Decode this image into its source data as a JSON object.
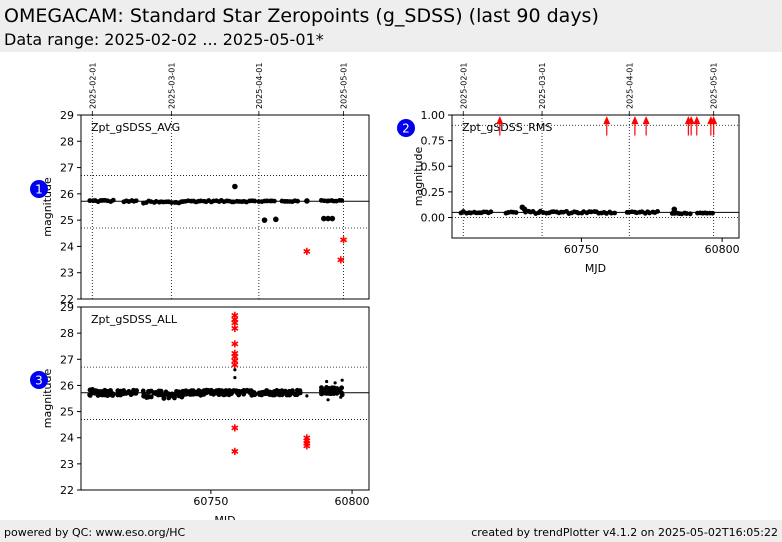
{
  "header": {
    "title": "OMEGACAM: Standard Star Zeropoints (g_SDSS) (last 90 days)",
    "subtitle": "Data range: 2025-02-02 ... 2025-05-01*"
  },
  "footer": {
    "left": "powered by QC: www.eso.org/HC",
    "right": "created by trendPlotter v4.1.2 on 2025-05-02T16:05:22"
  },
  "colors": {
    "data": "#000000",
    "outlier": "#ff0000",
    "badge": "#0000ee",
    "header_bg": "#eeeeee"
  },
  "chart_data": [
    {
      "type": "scatter",
      "badge": "1",
      "label": "Zpt_gSDSS_AVG",
      "ylabel": "magnitude",
      "ylim": [
        22,
        29
      ],
      "yticks": [
        22,
        23,
        24,
        25,
        26,
        27,
        28,
        29
      ],
      "xlim": [
        60704,
        60806
      ],
      "date_ticks": [
        {
          "mjd": 60708,
          "label": "2025-02-01"
        },
        {
          "mjd": 60736,
          "label": "2025-03-01"
        },
        {
          "mjd": 60767,
          "label": "2025-04-01"
        },
        {
          "mjd": 60797,
          "label": "2025-05-01"
        }
      ],
      "ref_lines": {
        "median": 25.72,
        "upper": 26.7,
        "lower": 24.7
      },
      "segments": [
        {
          "x0": 60707,
          "x1": 60716,
          "y": 25.73,
          "spread": 0.04
        },
        {
          "x0": 60719,
          "x1": 60724,
          "y": 25.72,
          "spread": 0.03
        },
        {
          "x0": 60726,
          "x1": 60740,
          "y": 25.68,
          "spread": 0.05
        },
        {
          "x0": 60740,
          "x1": 60766,
          "y": 25.72,
          "spread": 0.03
        },
        {
          "x0": 60767,
          "x1": 60773,
          "y": 25.72,
          "spread": 0.03
        },
        {
          "x0": 60775,
          "x1": 60781,
          "y": 25.72,
          "spread": 0.02
        },
        {
          "x0": 60789,
          "x1": 60797,
          "y": 25.74,
          "spread": 0.02
        }
      ],
      "points": [
        {
          "x": 60758.5,
          "y": 26.28
        },
        {
          "x": 60769,
          "y": 25.0
        },
        {
          "x": 60773,
          "y": 25.03
        },
        {
          "x": 60784,
          "y": 25.73
        },
        {
          "x": 60790,
          "y": 25.06
        },
        {
          "x": 60791.5,
          "y": 25.06
        },
        {
          "x": 60793,
          "y": 25.06
        }
      ],
      "outliers": [
        {
          "x": 60784,
          "y": 23.83
        },
        {
          "x": 60796,
          "y": 23.5
        },
        {
          "x": 60797,
          "y": 24.27
        }
      ]
    },
    {
      "type": "scatter",
      "badge": "2",
      "label": "Zpt_gSDSS_RMS",
      "ylabel": "magnitude",
      "xlabel": "MJD",
      "ylim": [
        -0.2,
        1.0
      ],
      "yticks": [
        0.0,
        0.25,
        0.5,
        0.75,
        1.0
      ],
      "ytick_labels": [
        "0.00",
        "0.25",
        "0.50",
        "0.75",
        "1.00"
      ],
      "xlim": [
        60704,
        60806
      ],
      "xticks": [
        60750,
        60800
      ],
      "date_ticks": [
        {
          "mjd": 60708,
          "label": "2025-02-01"
        },
        {
          "mjd": 60736,
          "label": "2025-03-01"
        },
        {
          "mjd": 60767,
          "label": "2025-04-01"
        },
        {
          "mjd": 60797,
          "label": "2025-05-01"
        }
      ],
      "ref_lines": {
        "median": 0.05,
        "upper": 0.9,
        "lower": 0.0
      },
      "segments": [
        {
          "x0": 60707,
          "x1": 60718,
          "y": 0.05,
          "spread": 0.01
        },
        {
          "x0": 60723,
          "x1": 60727,
          "y": 0.05,
          "spread": 0.01
        },
        {
          "x0": 60730,
          "x1": 60762,
          "y": 0.05,
          "spread": 0.012
        },
        {
          "x0": 60766,
          "x1": 60777,
          "y": 0.05,
          "spread": 0.01
        },
        {
          "x0": 60782,
          "x1": 60789,
          "y": 0.04,
          "spread": 0.005
        },
        {
          "x0": 60791,
          "x1": 60797,
          "y": 0.04,
          "spread": 0.005
        }
      ],
      "points": [
        {
          "x": 60729,
          "y": 0.1
        },
        {
          "x": 60729.8,
          "y": 0.08
        },
        {
          "x": 60783,
          "y": 0.08
        }
      ],
      "outliers": [
        {
          "x": 60721,
          "y": 0.95
        },
        {
          "x": 60759,
          "y": 0.95
        },
        {
          "x": 60769,
          "y": 0.95
        },
        {
          "x": 60773,
          "y": 0.95
        },
        {
          "x": 60788,
          "y": 0.95
        },
        {
          "x": 60789,
          "y": 0.95
        },
        {
          "x": 60791,
          "y": 0.95
        },
        {
          "x": 60796,
          "y": 0.95
        },
        {
          "x": 60797,
          "y": 0.95
        }
      ]
    },
    {
      "type": "scatter",
      "badge": "3",
      "label": "Zpt_gSDSS_ALL",
      "ylabel": "magnitude",
      "xlabel": "MJD",
      "ylim": [
        22,
        29
      ],
      "yticks": [
        22,
        23,
        24,
        25,
        26,
        27,
        28,
        29
      ],
      "xlim": [
        60704,
        60806
      ],
      "xticks": [
        60750,
        60800
      ],
      "ref_lines": {
        "median": 25.72,
        "upper": 26.7,
        "lower": 24.7
      },
      "segments": [
        {
          "x0": 60707,
          "x1": 60716,
          "y": 25.73,
          "spread": 0.12
        },
        {
          "x0": 60717,
          "x1": 60724,
          "y": 25.72,
          "spread": 0.1
        },
        {
          "x0": 60726,
          "x1": 60740,
          "y": 25.65,
          "spread": 0.15
        },
        {
          "x0": 60740,
          "x1": 60766,
          "y": 25.72,
          "spread": 0.1
        },
        {
          "x0": 60767,
          "x1": 60782,
          "y": 25.73,
          "spread": 0.1
        },
        {
          "x0": 60789,
          "x1": 60797,
          "y": 25.78,
          "spread": 0.15
        }
      ],
      "points": [
        {
          "x": 60758.5,
          "y": 26.3
        },
        {
          "x": 60758.5,
          "y": 26.6
        },
        {
          "x": 60791,
          "y": 26.15
        },
        {
          "x": 60794,
          "y": 26.1
        },
        {
          "x": 60796.5,
          "y": 26.2
        },
        {
          "x": 60784,
          "y": 25.6
        },
        {
          "x": 60791.5,
          "y": 25.45
        },
        {
          "x": 60796,
          "y": 25.55
        }
      ],
      "outliers": [
        {
          "x": 60758.5,
          "y": 28.7
        },
        {
          "x": 60758.5,
          "y": 28.55
        },
        {
          "x": 60758.5,
          "y": 28.4
        },
        {
          "x": 60758.5,
          "y": 28.2
        },
        {
          "x": 60758.5,
          "y": 27.6
        },
        {
          "x": 60758.5,
          "y": 27.25
        },
        {
          "x": 60758.5,
          "y": 27.1
        },
        {
          "x": 60758.5,
          "y": 26.95
        },
        {
          "x": 60758.5,
          "y": 26.8
        },
        {
          "x": 60758.5,
          "y": 24.4
        },
        {
          "x": 60758.5,
          "y": 23.5
        },
        {
          "x": 60784,
          "y": 24.0
        },
        {
          "x": 60784,
          "y": 23.9
        },
        {
          "x": 60784,
          "y": 23.8
        },
        {
          "x": 60784,
          "y": 23.7
        }
      ]
    }
  ]
}
